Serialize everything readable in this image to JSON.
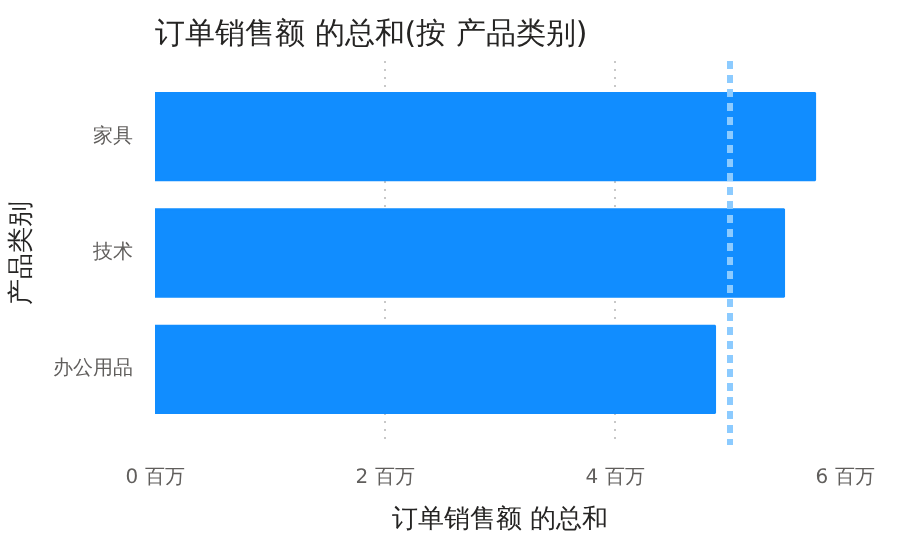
{
  "chart_data": {
    "type": "bar",
    "orientation": "horizontal",
    "title": "订单销售额 的总和(按 产品类别)",
    "xlabel": "订单销售额 的总和",
    "ylabel": "产品类别",
    "categories": [
      "家具",
      "技术",
      "办公用品"
    ],
    "values": [
      5.74,
      5.47,
      4.87
    ],
    "color": "#118dff",
    "xlim": [
      0,
      6
    ],
    "xticks": [
      {
        "value": 0,
        "label": "0 百万"
      },
      {
        "value": 2,
        "label": "2 百万"
      },
      {
        "value": 4,
        "label": "4 百万"
      },
      {
        "value": 6,
        "label": "6 百万"
      }
    ],
    "grid": "x",
    "ref_lines": [
      {
        "axis": "x",
        "value": 5.0,
        "color": "#8ccbff",
        "line_style": "dashed"
      }
    ]
  }
}
